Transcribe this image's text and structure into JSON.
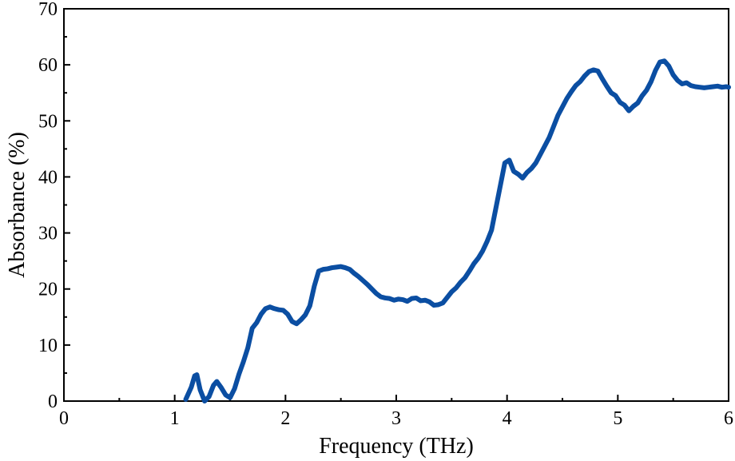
{
  "chart_data": {
    "type": "line",
    "title": "",
    "xlabel": "Frequency (THz)",
    "ylabel": "Absorbance (%)",
    "xlim": [
      0,
      6
    ],
    "ylim": [
      0,
      70
    ],
    "x_ticks": [
      0,
      1,
      2,
      3,
      4,
      5,
      6
    ],
    "y_ticks": [
      0,
      10,
      20,
      30,
      40,
      50,
      60,
      70
    ],
    "x_tick_labels": [
      "0",
      "1",
      "2",
      "3",
      "4",
      "5",
      "6"
    ],
    "y_tick_labels": [
      "0",
      "10",
      "20",
      "30",
      "40",
      "50",
      "60",
      "70"
    ],
    "grid": false,
    "legend": "none",
    "series": [
      {
        "color": "#0b4ea2",
        "x": [
          1.1,
          1.15,
          1.18,
          1.2,
          1.23,
          1.27,
          1.31,
          1.35,
          1.38,
          1.42,
          1.46,
          1.5,
          1.54,
          1.58,
          1.62,
          1.66,
          1.7,
          1.74,
          1.78,
          1.82,
          1.86,
          1.9,
          1.94,
          1.98,
          2.02,
          2.06,
          2.1,
          2.14,
          2.18,
          2.22,
          2.26,
          2.3,
          2.34,
          2.38,
          2.42,
          2.46,
          2.5,
          2.54,
          2.58,
          2.62,
          2.66,
          2.7,
          2.74,
          2.78,
          2.82,
          2.86,
          2.9,
          2.94,
          2.98,
          3.02,
          3.06,
          3.1,
          3.14,
          3.18,
          3.22,
          3.26,
          3.3,
          3.34,
          3.38,
          3.42,
          3.46,
          3.5,
          3.54,
          3.58,
          3.62,
          3.66,
          3.7,
          3.74,
          3.78,
          3.82,
          3.86,
          3.9,
          3.94,
          3.98,
          4.02,
          4.06,
          4.1,
          4.14,
          4.18,
          4.22,
          4.26,
          4.3,
          4.34,
          4.38,
          4.42,
          4.46,
          4.5,
          4.54,
          4.58,
          4.62,
          4.66,
          4.7,
          4.74,
          4.78,
          4.82,
          4.86,
          4.9,
          4.94,
          4.98,
          5.02,
          5.06,
          5.1,
          5.14,
          5.18,
          5.22,
          5.26,
          5.3,
          5.34,
          5.38,
          5.42,
          5.46,
          5.5,
          5.54,
          5.58,
          5.62,
          5.66,
          5.7,
          5.74,
          5.78,
          5.82,
          5.86,
          5.9,
          5.94,
          5.98,
          6.0
        ],
        "y": [
          0.3,
          2.5,
          4.5,
          4.7,
          2.0,
          0.0,
          0.8,
          2.8,
          3.5,
          2.4,
          1.1,
          0.6,
          2.2,
          4.8,
          7.0,
          9.5,
          13.0,
          14.0,
          15.5,
          16.5,
          16.8,
          16.5,
          16.3,
          16.2,
          15.5,
          14.2,
          13.8,
          14.5,
          15.4,
          17.0,
          20.5,
          23.2,
          23.5,
          23.6,
          23.8,
          23.9,
          24.0,
          23.8,
          23.5,
          22.8,
          22.2,
          21.5,
          20.8,
          20.0,
          19.2,
          18.6,
          18.4,
          18.3,
          18.0,
          18.2,
          18.1,
          17.8,
          18.3,
          18.4,
          17.9,
          18.0,
          17.7,
          17.1,
          17.2,
          17.5,
          18.5,
          19.5,
          20.2,
          21.2,
          22.0,
          23.2,
          24.5,
          25.5,
          26.8,
          28.5,
          30.5,
          34.5,
          38.5,
          42.5,
          43.0,
          41.0,
          40.5,
          39.8,
          40.8,
          41.5,
          42.5,
          44.0,
          45.5,
          47.0,
          49.0,
          51.0,
          52.5,
          54.0,
          55.2,
          56.3,
          57.0,
          58.0,
          58.8,
          59.1,
          58.9,
          57.5,
          56.2,
          55.0,
          54.5,
          53.3,
          52.8,
          51.8,
          52.6,
          53.2,
          54.5,
          55.5,
          57.0,
          59.0,
          60.5,
          60.7,
          59.8,
          58.2,
          57.2,
          56.6,
          56.8,
          56.3,
          56.1,
          56.0,
          55.9,
          56.0,
          56.1,
          56.2,
          56.0,
          56.1,
          56.0
        ]
      }
    ]
  }
}
